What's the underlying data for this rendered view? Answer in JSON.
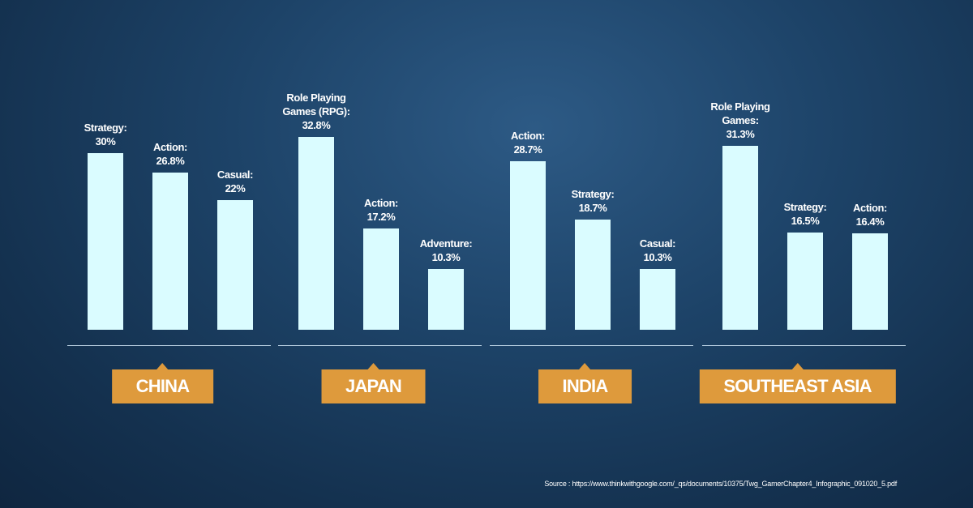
{
  "chart_data": [
    {
      "type": "bar",
      "title": "CHINA",
      "categories": [
        "Strategy:",
        "Action:",
        "Casual:"
      ],
      "values": [
        30,
        26.8,
        22
      ],
      "value_labels": [
        "30%",
        "26.8%",
        "22%"
      ],
      "color": "#dafcff"
    },
    {
      "type": "bar",
      "title": "JAPAN",
      "categories": [
        "Role Playing Games (RPG):",
        "Action:",
        "Adventure:"
      ],
      "values": [
        32.8,
        17.2,
        10.3
      ],
      "value_labels": [
        "32.8%",
        "17.2%",
        "10.3%"
      ],
      "color": "#dafcff"
    },
    {
      "type": "bar",
      "title": "INDIA",
      "categories": [
        "Action:",
        "Strategy:",
        "Casual:"
      ],
      "values": [
        28.7,
        18.7,
        10.3
      ],
      "value_labels": [
        "28.7%",
        "18.7%",
        "10.3%"
      ],
      "color": "#dafcff"
    },
    {
      "type": "bar",
      "title": "SOUTHEAST ASIA",
      "categories": [
        "Role Playing Games:",
        "Strategy:",
        "Action:"
      ],
      "values": [
        31.3,
        16.5,
        16.4
      ],
      "value_labels": [
        "31.3%",
        "16.5%",
        "16.4%"
      ],
      "color": "#dafcff"
    }
  ],
  "source": "Source : https://www.thinkwithgoogle.com/_qs/documents/10375/Twg_GamerChapter4_Infographic_091020_5.pdf"
}
